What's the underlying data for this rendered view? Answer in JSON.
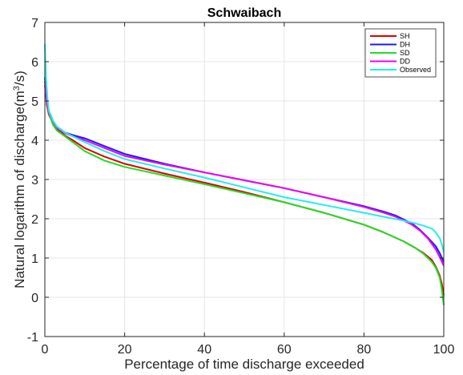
{
  "chart_data": {
    "type": "line",
    "title": "Schwaibach",
    "xlabel": "Percentage of time discharge exceeded",
    "ylabel_parts": [
      "Natural logarithm of discharge(m",
      "3",
      "/s)"
    ],
    "xlim": [
      0,
      100
    ],
    "ylim": [
      -1,
      7
    ],
    "x_ticks": [
      "0",
      "20",
      "40",
      "60",
      "80",
      "100"
    ],
    "y_ticks": [
      "-1",
      "0",
      "1",
      "2",
      "3",
      "4",
      "5",
      "6",
      "7"
    ],
    "grid": true,
    "legend_position": "top-right",
    "series": [
      {
        "name": "SH",
        "color": "#e00000",
        "x": [
          0,
          0.5,
          1,
          2,
          3,
          5,
          7,
          10,
          15,
          20,
          30,
          40,
          50,
          60,
          70,
          80,
          85,
          90,
          93,
          95,
          97,
          98,
          99,
          99.5,
          100
        ],
        "y": [
          5.4,
          4.9,
          4.65,
          4.45,
          4.3,
          4.12,
          4.0,
          3.8,
          3.58,
          3.4,
          3.15,
          2.92,
          2.68,
          2.42,
          2.15,
          1.85,
          1.65,
          1.42,
          1.25,
          1.12,
          0.95,
          0.78,
          0.55,
          0.35,
          0.05
        ]
      },
      {
        "name": "DH",
        "color": "#1a1aff",
        "x": [
          0,
          0.5,
          1,
          2,
          3,
          5,
          7,
          10,
          15,
          20,
          30,
          40,
          50,
          60,
          70,
          80,
          85,
          88,
          90,
          92,
          94,
          96,
          98,
          99,
          100
        ],
        "y": [
          5.5,
          5.0,
          4.75,
          4.5,
          4.35,
          4.2,
          4.13,
          4.05,
          3.85,
          3.65,
          3.4,
          3.18,
          2.98,
          2.78,
          2.55,
          2.32,
          2.18,
          2.08,
          1.98,
          1.88,
          1.72,
          1.52,
          1.3,
          1.12,
          0.9
        ]
      },
      {
        "name": "SD",
        "color": "#22dd22",
        "x": [
          0,
          0.5,
          1,
          2,
          3,
          5,
          7,
          10,
          15,
          20,
          30,
          40,
          50,
          60,
          70,
          80,
          85,
          90,
          93,
          95,
          97,
          98,
          99,
          99.5,
          100
        ],
        "y": [
          5.6,
          5.0,
          4.7,
          4.4,
          4.25,
          4.1,
          3.95,
          3.72,
          3.48,
          3.32,
          3.1,
          2.88,
          2.65,
          2.42,
          2.15,
          1.85,
          1.65,
          1.42,
          1.25,
          1.1,
          0.9,
          0.75,
          0.5,
          0.2,
          -0.2
        ]
      },
      {
        "name": "DD",
        "color": "#ee00ee",
        "x": [
          0,
          0.5,
          1,
          2,
          3,
          5,
          7,
          10,
          15,
          20,
          30,
          40,
          50,
          60,
          70,
          80,
          85,
          88,
          90,
          92,
          94,
          96,
          98,
          99,
          100
        ],
        "y": [
          5.6,
          5.0,
          4.72,
          4.48,
          4.32,
          4.18,
          4.1,
          4.0,
          3.8,
          3.6,
          3.38,
          3.18,
          2.98,
          2.78,
          2.55,
          2.3,
          2.15,
          2.05,
          1.95,
          1.85,
          1.7,
          1.5,
          1.22,
          1.02,
          0.8
        ]
      },
      {
        "name": "Observed",
        "color": "#22eeee",
        "x": [
          0,
          0.3,
          0.7,
          1,
          2,
          3,
          5,
          7,
          10,
          15,
          20,
          30,
          40,
          50,
          60,
          70,
          80,
          85,
          90,
          93,
          95,
          97,
          98,
          99,
          99.5,
          100
        ],
        "y": [
          6.45,
          5.6,
          5.0,
          4.75,
          4.5,
          4.35,
          4.2,
          4.1,
          3.95,
          3.72,
          3.52,
          3.28,
          3.05,
          2.8,
          2.55,
          2.35,
          2.15,
          2.05,
          1.95,
          1.88,
          1.82,
          1.75,
          1.65,
          1.5,
          1.35,
          1.15
        ]
      }
    ]
  }
}
